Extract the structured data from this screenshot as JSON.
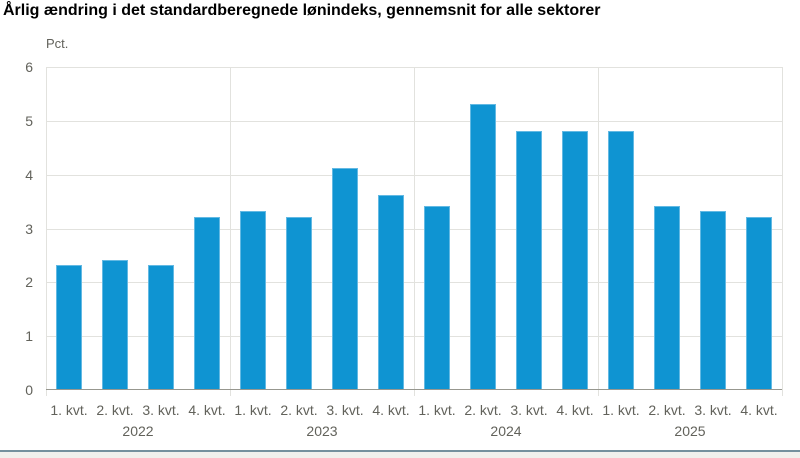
{
  "title": "Årlig ændring i det standardberegnede lønindeks, gennemsnit for alle sektorer",
  "y_axis_unit": "Pct.",
  "colors": {
    "bar": "#0f94d2",
    "bar_border": "#63b9e3",
    "gridline": "#e2e2de",
    "axis_line": "#97978f",
    "label_text": "#62625b",
    "title_text": "#000000",
    "footer_line": "#74909e",
    "footer_bg": "#f0f0ed"
  },
  "chart_data": {
    "type": "bar",
    "title": "Årlig ændring i det standardberegnede lønindeks, gennemsnit for alle sektorer",
    "xlabel": "",
    "ylabel": "Pct.",
    "ylim": [
      0,
      6
    ],
    "y_ticks": [
      0,
      1,
      2,
      3,
      4,
      5,
      6
    ],
    "grid": true,
    "legend_position": "none",
    "group_labels": [
      "2022",
      "2023",
      "2024",
      "2025"
    ],
    "categories": [
      "1. kvt.",
      "2. kvt.",
      "3. kvt.",
      "4. kvt.",
      "1. kvt.",
      "2. kvt.",
      "3. kvt.",
      "4. kvt.",
      "1. kvt.",
      "2. kvt.",
      "3. kvt.",
      "4. kvt.",
      "1. kvt.",
      "2. kvt.",
      "3. kvt.",
      "4. kvt."
    ],
    "values": [
      2.3,
      2.4,
      2.3,
      3.2,
      3.3,
      3.2,
      4.1,
      3.6,
      3.4,
      5.3,
      4.8,
      4.8,
      4.8,
      3.4,
      3.3,
      3.2
    ]
  }
}
